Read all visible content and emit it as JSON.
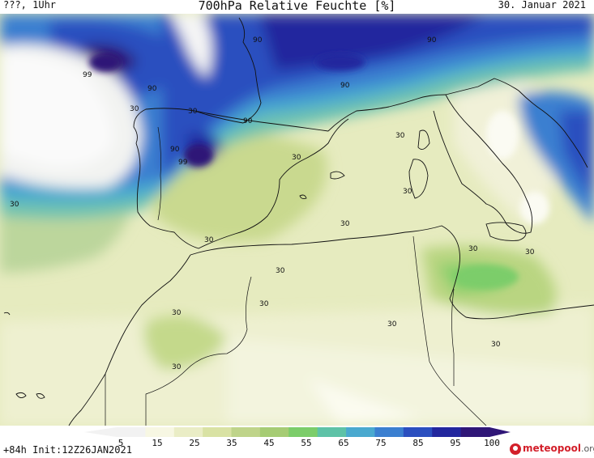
{
  "header": {
    "left": "???, 1Uhr",
    "title": "700hPa Relative Feuchte [%]",
    "date": "30. Januar 2021"
  },
  "map": {
    "region": "Western Mediterranean, Iberian Peninsula, North Africa",
    "contour_labels": [
      "90",
      "99",
      "90",
      "30",
      "90",
      "90",
      "90",
      "90",
      "99",
      "30",
      "30",
      "30",
      "30",
      "30",
      "30",
      "30",
      "30",
      "30",
      "30",
      "30",
      "30",
      "30",
      "30",
      "30"
    ]
  },
  "colorbar": {
    "ticks": [
      "5",
      "15",
      "25",
      "35",
      "45",
      "55",
      "65",
      "75",
      "85",
      "95",
      "100"
    ],
    "colors": [
      "#f2f2f2",
      "#f7f7e3",
      "#eaedc6",
      "#d9e2a4",
      "#bfd48a",
      "#a6cc74",
      "#7ccd6a",
      "#5ec2a7",
      "#4aa9cf",
      "#3b7fd0",
      "#2b4fbf",
      "#23279e",
      "#2f1677"
    ]
  },
  "footer": {
    "init": "+84h Init:12Z26JAN2021",
    "logo_main": "meteopool",
    "logo_tld": ".org"
  }
}
